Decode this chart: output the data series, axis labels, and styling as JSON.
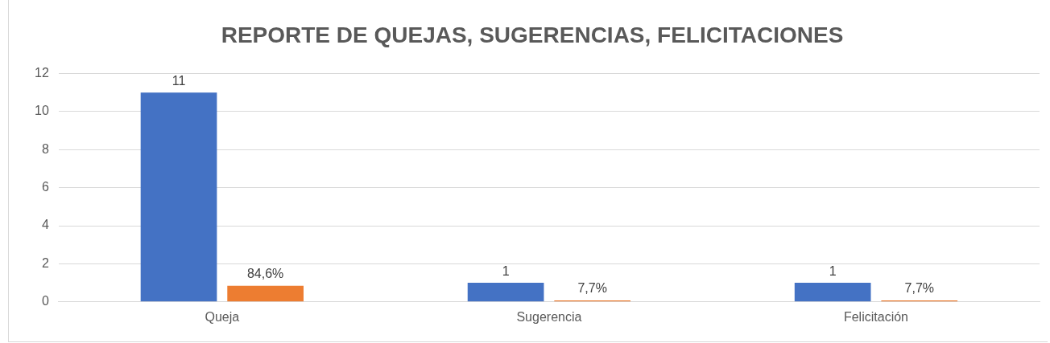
{
  "chart_data": {
    "type": "bar",
    "title": "REPORTE DE QUEJAS, SUGERENCIAS, FELICITACIONES",
    "categories": [
      "Queja",
      "Sugerencia",
      "Felicitación"
    ],
    "series": [
      {
        "color": "#4472c4",
        "values": [
          11,
          1,
          1
        ],
        "value_labels": [
          "11",
          "1",
          "1"
        ]
      },
      {
        "color": "#ed7d31",
        "values": [
          0.846,
          0.077,
          0.077
        ],
        "value_labels": [
          "84,6%",
          "7,7%",
          "7,7%"
        ]
      }
    ],
    "ylim": [
      0,
      12
    ],
    "yticks": [
      0,
      2,
      4,
      6,
      8,
      10,
      12
    ],
    "grid": "y",
    "legend": false
  }
}
